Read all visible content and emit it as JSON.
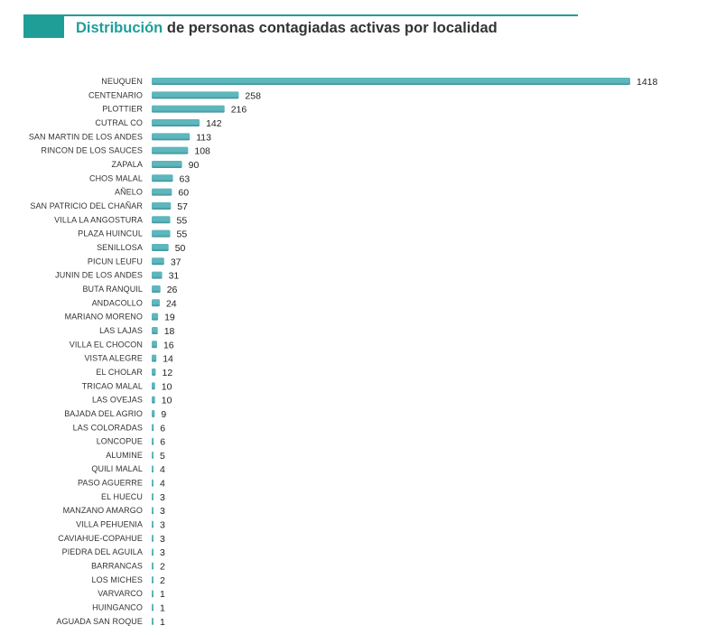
{
  "header": {
    "title_accent": "Distribución",
    "title_rest": "de personas contagiadas activas por localidad"
  },
  "colors": {
    "accent": "#1f9e98",
    "bar": "#5db7bd",
    "bar_dark": "#3f8f96"
  },
  "chart_data": {
    "type": "bar",
    "orientation": "horizontal",
    "title": "Distribución de personas contagiadas activas por localidad",
    "xlabel": "",
    "ylabel": "",
    "grid": false,
    "xlim": [
      0,
      1418
    ],
    "categories": [
      "NEUQUEN",
      "CENTENARIO",
      "PLOTTIER",
      "CUTRAL CO",
      "SAN MARTIN DE LOS ANDES",
      "RINCON DE LOS SAUCES",
      "ZAPALA",
      "CHOS MALAL",
      "AÑELO",
      "SAN PATRICIO DEL CHAÑAR",
      "VILLA LA ANGOSTURA",
      "PLAZA HUINCUL",
      "SENILLOSA",
      "PICUN LEUFU",
      "JUNIN DE LOS ANDES",
      "BUTA RANQUIL",
      "ANDACOLLO",
      "MARIANO MORENO",
      "LAS LAJAS",
      "VILLA EL CHOCON",
      "VISTA ALEGRE",
      "EL CHOLAR",
      "TRICAO MALAL",
      "LAS OVEJAS",
      "BAJADA DEL AGRIO",
      "LAS COLORADAS",
      "LONCOPUE",
      "ALUMINE",
      "QUILI MALAL",
      "PASO AGUERRE",
      "EL HUECU",
      "MANZANO AMARGO",
      "VILLA PEHUENIA",
      "CAVIAHUE-COPAHUE",
      "PIEDRA DEL AGUILA",
      "BARRANCAS",
      "LOS MICHES",
      "VARVARCO",
      "HUINGANCO",
      "AGUADA SAN ROQUE"
    ],
    "values": [
      1418,
      258,
      216,
      142,
      113,
      108,
      90,
      63,
      60,
      57,
      55,
      55,
      50,
      37,
      31,
      26,
      24,
      19,
      18,
      16,
      14,
      12,
      10,
      10,
      9,
      6,
      6,
      5,
      4,
      4,
      3,
      3,
      3,
      3,
      3,
      2,
      2,
      1,
      1,
      1
    ]
  }
}
